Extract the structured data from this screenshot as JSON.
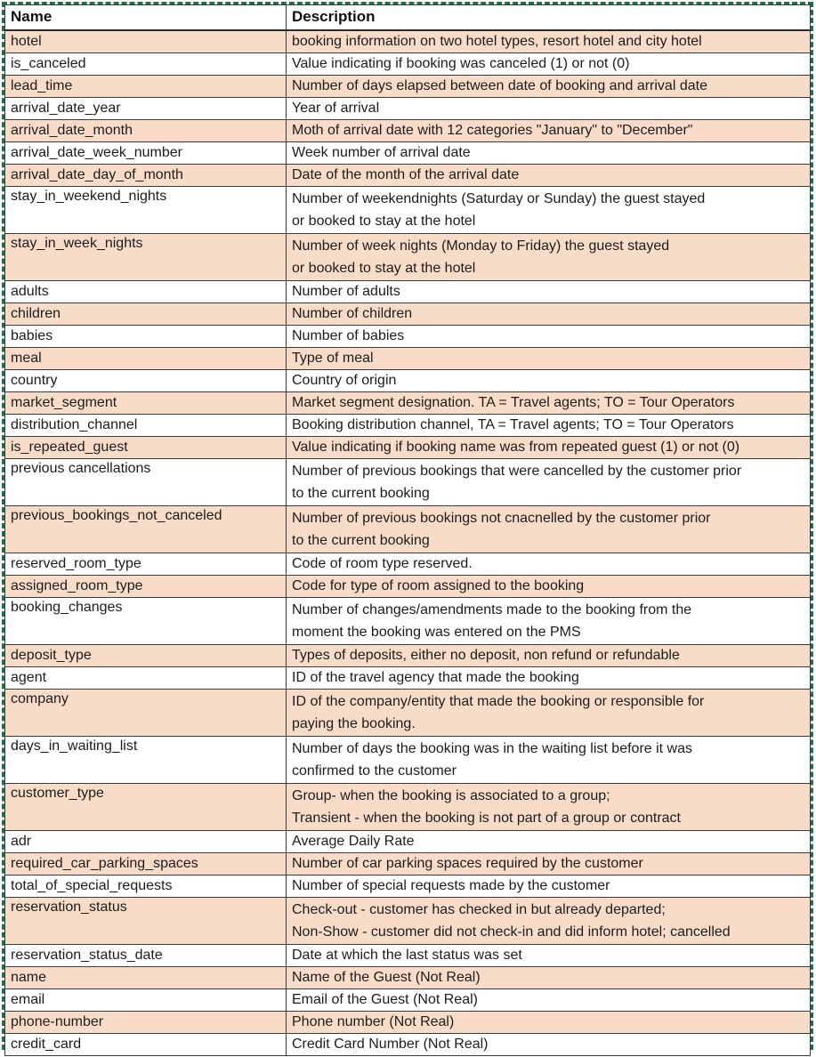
{
  "colors": {
    "row_fill_peach": "#f9dcc7",
    "selection_border_green": "#1e7145",
    "grid_line": "#3a3a3a",
    "text": "#1c1c1c"
  },
  "table": {
    "header": {
      "name": "Name",
      "description": "Description"
    },
    "rows": [
      {
        "name": "hotel",
        "description": [
          "booking information on two hotel types, resort hotel and city hotel"
        ]
      },
      {
        "name": "is_canceled",
        "description": [
          "Value indicating if booking was canceled (1) or not (0)"
        ]
      },
      {
        "name": "lead_time",
        "description": [
          "Number of days elapsed between date of booking and arrival date"
        ]
      },
      {
        "name": "arrival_date_year",
        "description": [
          "Year of arrival"
        ]
      },
      {
        "name": "arrival_date_month",
        "description": [
          "Moth of arrival date with 12 categories \"January\" to \"December\""
        ]
      },
      {
        "name": "arrival_date_week_number",
        "description": [
          "Week number of arrival date"
        ]
      },
      {
        "name": "arrival_date_day_of_month",
        "description": [
          "Date of the month of the arrival date"
        ]
      },
      {
        "name": "stay_in_weekend_nights",
        "description": [
          "Number of weekendnights (Saturday or Sunday) the guest stayed",
          "or booked to stay at the hotel"
        ]
      },
      {
        "name": "stay_in_week_nights",
        "description": [
          "Number of week nights (Monday to Friday) the guest stayed",
          "or booked to stay at the hotel"
        ]
      },
      {
        "name": "adults",
        "description": [
          "Number of adults"
        ]
      },
      {
        "name": "children",
        "description": [
          "Number of children"
        ]
      },
      {
        "name": "babies",
        "description": [
          "Number of babies"
        ]
      },
      {
        "name": "meal",
        "description": [
          "Type of meal"
        ]
      },
      {
        "name": "country",
        "description": [
          "Country of origin"
        ]
      },
      {
        "name": "market_segment",
        "description": [
          "Market segment designation. TA = Travel agents; TO = Tour Operators"
        ]
      },
      {
        "name": "distribution_channel",
        "description": [
          "Booking distribution channel, TA = Travel agents; TO = Tour Operators"
        ]
      },
      {
        "name": "is_repeated_guest",
        "description": [
          "Value indicating if booking name was from repeated guest (1) or not (0)"
        ]
      },
      {
        "name": "previous cancellations",
        "description": [
          "Number of previous bookings that were cancelled by the customer prior",
          "to the current booking"
        ]
      },
      {
        "name": "previous_bookings_not_canceled",
        "description": [
          "Number of previous bookings not cnacnelled by the customer prior",
          "to the current booking"
        ]
      },
      {
        "name": "reserved_room_type",
        "description": [
          "Code of room type reserved."
        ]
      },
      {
        "name": "assigned_room_type",
        "description": [
          "Code for type of room assigned to the booking"
        ]
      },
      {
        "name": "booking_changes",
        "description": [
          "Number of changes/amendments made to the booking from the",
          "moment the booking was entered on the PMS"
        ]
      },
      {
        "name": "deposit_type",
        "description": [
          "Types of deposits, either no deposit, non refund or refundable"
        ]
      },
      {
        "name": "agent",
        "description": [
          "ID of the travel agency that made the booking"
        ]
      },
      {
        "name": "company",
        "description": [
          "ID of the company/entity that made the booking or responsible for",
          "paying the booking."
        ]
      },
      {
        "name": "days_in_waiting_list",
        "description": [
          "Number of days the booking was in the waiting list before it was",
          "confirmed to the customer"
        ]
      },
      {
        "name": "customer_type",
        "description": [
          "Group- when the booking is associated to a group;",
          "Transient - when the booking is not part of a group or contract"
        ]
      },
      {
        "name": "adr",
        "description": [
          "Average Daily Rate"
        ]
      },
      {
        "name": "required_car_parking_spaces",
        "description": [
          "Number of car parking spaces required by the customer"
        ]
      },
      {
        "name": "total_of_special_requests",
        "description": [
          "Number of special requests made by the customer"
        ]
      },
      {
        "name": "reservation_status",
        "description": [
          "Check-out - customer has checked in but already departed;",
          "Non-Show - customer did not check-in and did inform hotel; cancelled"
        ]
      },
      {
        "name": "reservation_status_date",
        "description": [
          "Date at which the last status was set"
        ]
      },
      {
        "name": "name",
        "description": [
          "Name of the Guest (Not Real)"
        ]
      },
      {
        "name": "email",
        "description": [
          "Email of the Guest (Not Real)"
        ]
      },
      {
        "name": "phone-number",
        "description": [
          "Phone number (Not Real)"
        ]
      },
      {
        "name": "credit_card",
        "description": [
          "Credit Card Number (Not Real)"
        ]
      }
    ]
  }
}
